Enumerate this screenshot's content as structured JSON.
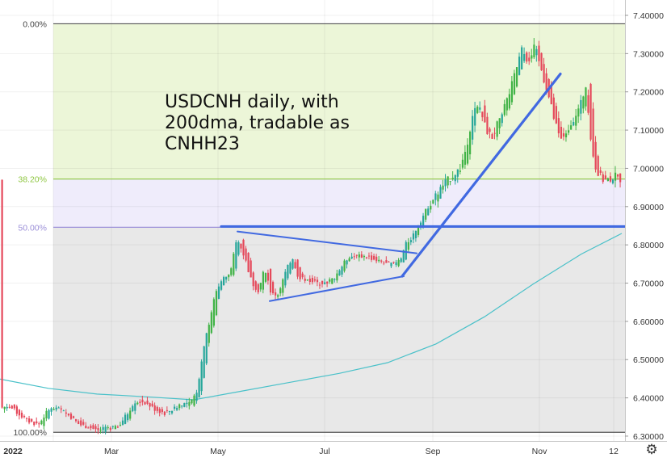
{
  "chart_data": {
    "type": "candlestick",
    "title": "",
    "annotation": "USDCNH daily, with\n200dma, tradable as\nCNHH23",
    "y_axis": {
      "position": "right",
      "range": [
        6.3,
        7.4
      ],
      "ticks": [
        "7.40000",
        "7.30000",
        "7.20000",
        "7.10000",
        "7.00000",
        "6.90000",
        "6.80000",
        "6.70000",
        "6.60000",
        "6.50000",
        "6.40000",
        "6.30000"
      ]
    },
    "x_axis": {
      "labels": [
        "2022",
        "Mar",
        "May",
        "Jul",
        "Sep",
        "Nov",
        "12"
      ]
    },
    "fibonacci": {
      "levels": [
        {
          "label": "0.00%",
          "price": 7.378,
          "color": "#555555"
        },
        {
          "label": "38.20%",
          "price": 6.972,
          "color": "#8dc63f"
        },
        {
          "label": "50.00%",
          "price": 6.846,
          "color": "#9b8fd8"
        },
        {
          "label": "100.00%",
          "price": 6.31,
          "color": "#555555"
        }
      ],
      "zone_colors": [
        "#ecf6d8",
        "#efecfb",
        "#e8e8e8"
      ]
    },
    "price_path": [
      [
        0,
        6.37
      ],
      [
        12,
        6.38
      ],
      [
        24,
        6.36
      ],
      [
        36,
        6.34
      ],
      [
        50,
        6.33
      ],
      [
        62,
        6.37
      ],
      [
        76,
        6.37
      ],
      [
        90,
        6.35
      ],
      [
        100,
        6.33
      ],
      [
        110,
        6.325
      ],
      [
        122,
        6.315
      ],
      [
        136,
        6.32
      ],
      [
        150,
        6.33
      ],
      [
        160,
        6.36
      ],
      [
        168,
        6.39
      ],
      [
        180,
        6.39
      ],
      [
        194,
        6.37
      ],
      [
        206,
        6.36
      ],
      [
        216,
        6.37
      ],
      [
        226,
        6.385
      ],
      [
        238,
        6.385
      ],
      [
        246,
        6.42
      ],
      [
        252,
        6.5
      ],
      [
        256,
        6.56
      ],
      [
        262,
        6.6
      ],
      [
        268,
        6.67
      ],
      [
        276,
        6.71
      ],
      [
        286,
        6.72
      ],
      [
        296,
        6.82
      ],
      [
        306,
        6.76
      ],
      [
        314,
        6.7
      ],
      [
        322,
        6.68
      ],
      [
        330,
        6.74
      ],
      [
        338,
        6.67
      ],
      [
        346,
        6.67
      ],
      [
        354,
        6.72
      ],
      [
        364,
        6.77
      ],
      [
        372,
        6.71
      ],
      [
        382,
        6.71
      ],
      [
        394,
        6.7
      ],
      [
        404,
        6.7
      ],
      [
        414,
        6.71
      ],
      [
        424,
        6.74
      ],
      [
        434,
        6.77
      ],
      [
        444,
        6.77
      ],
      [
        456,
        6.77
      ],
      [
        468,
        6.76
      ],
      [
        480,
        6.75
      ],
      [
        490,
        6.75
      ],
      [
        498,
        6.76
      ],
      [
        504,
        6.8
      ],
      [
        512,
        6.82
      ],
      [
        522,
        6.86
      ],
      [
        532,
        6.9
      ],
      [
        542,
        6.93
      ],
      [
        552,
        6.96
      ],
      [
        562,
        6.98
      ],
      [
        572,
        7.0
      ],
      [
        580,
        7.06
      ],
      [
        588,
        7.15
      ],
      [
        596,
        7.16
      ],
      [
        604,
        7.1
      ],
      [
        612,
        7.08
      ],
      [
        622,
        7.14
      ],
      [
        632,
        7.19
      ],
      [
        640,
        7.25
      ],
      [
        648,
        7.31
      ],
      [
        656,
        7.28
      ],
      [
        664,
        7.32
      ],
      [
        672,
        7.26
      ],
      [
        680,
        7.2
      ],
      [
        688,
        7.13
      ],
      [
        696,
        7.07
      ],
      [
        704,
        7.1
      ],
      [
        712,
        7.13
      ],
      [
        720,
        7.16
      ],
      [
        728,
        7.22
      ],
      [
        734,
        7.06
      ],
      [
        740,
        7.0
      ],
      [
        748,
        6.97
      ],
      [
        756,
        6.97
      ],
      [
        764,
        6.98
      ],
      [
        770,
        6.97
      ]
    ],
    "series": [
      {
        "name": "200dma",
        "color": "#4ac1c9",
        "points": [
          [
            0,
            6.449
          ],
          [
            60,
            6.425
          ],
          [
            120,
            6.41
          ],
          [
            180,
            6.403
          ],
          [
            240,
            6.395
          ],
          [
            300,
            6.418
          ],
          [
            360,
            6.441
          ],
          [
            420,
            6.464
          ],
          [
            480,
            6.492
          ],
          [
            540,
            6.541
          ],
          [
            600,
            6.612
          ],
          [
            660,
            6.697
          ],
          [
            720,
            6.776
          ],
          [
            770,
            6.83
          ]
        ]
      }
    ],
    "trendlines": [
      {
        "name": "support-line",
        "color": "#4169e1",
        "from": [
          274,
          6.848
        ],
        "to": [
          774,
          6.848
        ]
      },
      {
        "name": "triangle-upper",
        "color": "#4169e1",
        "from": [
          294,
          6.835
        ],
        "to": [
          516,
          6.778
        ]
      },
      {
        "name": "triangle-lower",
        "color": "#4169e1",
        "from": [
          334,
          6.653
        ],
        "to": [
          500,
          6.718
        ]
      },
      {
        "name": "breakout-trend",
        "color": "#4169e1",
        "from": [
          498,
          6.718
        ],
        "to": [
          694,
          7.247
        ]
      }
    ],
    "colors": {
      "up": "#26a69a",
      "up_bright": "#41b346",
      "down": "#e5485a"
    },
    "grid": true
  }
}
